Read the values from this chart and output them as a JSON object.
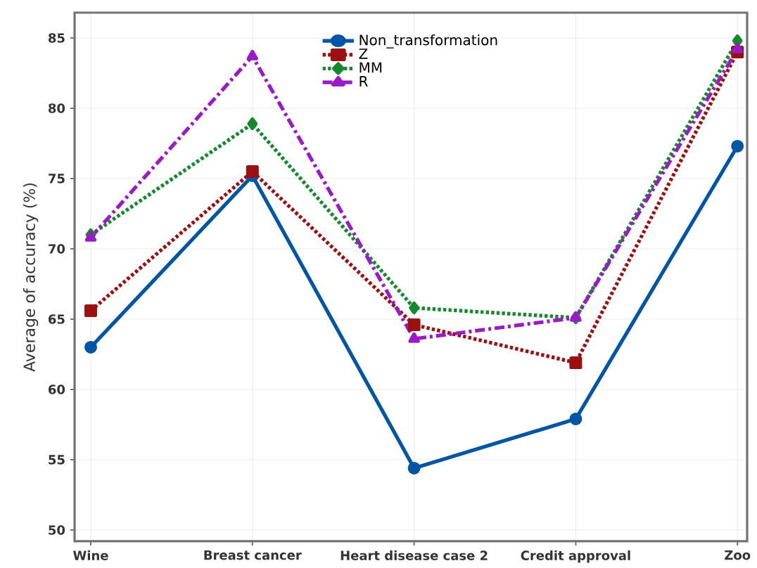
{
  "chart_data": {
    "type": "line",
    "ylabel": "Average of accuracy (%)",
    "categories": [
      "Wine",
      "Breast cancer",
      "Heart disease case 2",
      "Credit approval",
      "Zoo"
    ],
    "series": [
      {
        "name": "Non_transformation",
        "color": "#0055a5",
        "marker": "circle",
        "line_style": "solid",
        "values": [
          63.0,
          75.2,
          54.4,
          57.9,
          77.3
        ]
      },
      {
        "name": "Z",
        "color": "#9b1010",
        "marker": "square",
        "line_style": "dotted",
        "values": [
          65.6,
          75.5,
          64.6,
          61.9,
          84.0
        ]
      },
      {
        "name": "MM",
        "color": "#138a2e",
        "marker": "diamond",
        "line_style": "dotted",
        "values": [
          71.0,
          78.9,
          65.8,
          65.1,
          84.8
        ]
      },
      {
        "name": "R",
        "color": "#9a1ac8",
        "marker": "triangle",
        "line_style": "dashed",
        "values": [
          70.8,
          83.7,
          63.6,
          65.1,
          84.2
        ]
      }
    ],
    "ylim": [
      49.2,
      86.8
    ],
    "yticks": [
      50,
      55,
      60,
      65,
      70,
      75,
      80,
      85
    ],
    "grid": true,
    "legend": "top"
  }
}
